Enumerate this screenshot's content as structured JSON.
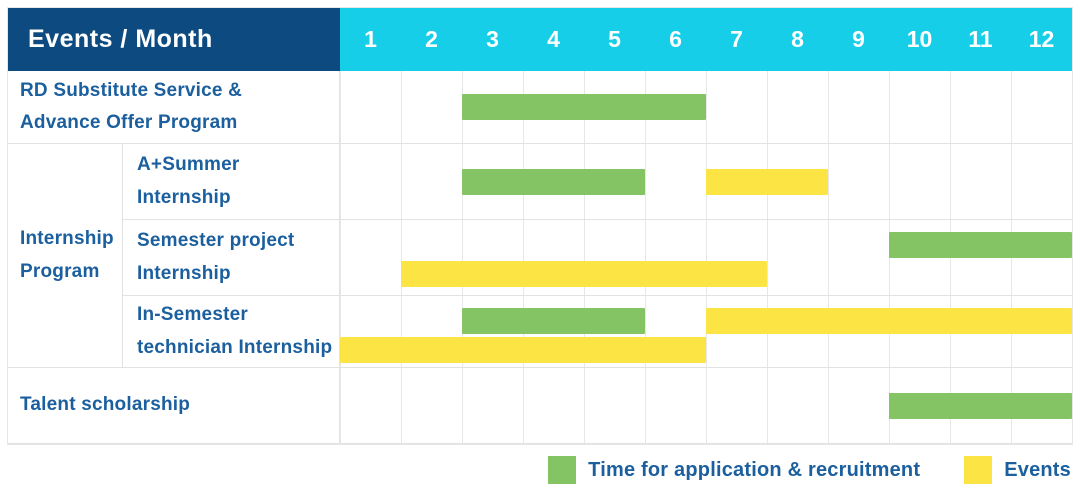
{
  "header": {
    "title": "Events / Month"
  },
  "months": [
    "1",
    "2",
    "3",
    "4",
    "5",
    "6",
    "7",
    "8",
    "9",
    "10",
    "11",
    "12"
  ],
  "colors": {
    "header_bg": "#0d4a7f",
    "months_bg": "#17cee9",
    "application": "#84c464",
    "events": "#fde445",
    "label_text": "#1b5f9e",
    "grid_line": "#e7e7e7"
  },
  "rows": [
    {
      "label": "RD Substitute Service &\nAdvance Offer Program",
      "lanes": 1,
      "bars": [
        {
          "type": "application",
          "start": 3,
          "end": 6,
          "lane": 0
        }
      ]
    },
    {
      "group": "Internship\nProgram",
      "label": "A+Summer\nInternship",
      "lanes": 1,
      "bars": [
        {
          "type": "application",
          "start": 3,
          "end": 5,
          "lane": 0
        },
        {
          "type": "events",
          "start": 7,
          "end": 8,
          "lane": 0
        }
      ]
    },
    {
      "label": "Semester project\nInternship",
      "lanes": 2,
      "bars": [
        {
          "type": "application",
          "start": 10,
          "end": 12,
          "lane": 0
        },
        {
          "type": "events",
          "start": 2,
          "end": 7,
          "lane": 1
        }
      ]
    },
    {
      "label": "In-Semester\ntechnician Internship",
      "lanes": 2,
      "bars": [
        {
          "type": "application",
          "start": 3,
          "end": 5,
          "lane": 0
        },
        {
          "type": "events",
          "start": 7,
          "end": 12,
          "lane": 0
        },
        {
          "type": "events",
          "start": 1,
          "end": 6,
          "lane": 1
        }
      ]
    },
    {
      "label": "Talent scholarship",
      "lanes": 1,
      "bars": [
        {
          "type": "application",
          "start": 10,
          "end": 12,
          "lane": 0
        }
      ]
    }
  ],
  "legend": [
    {
      "type": "application",
      "label": "Time for application & recruitment"
    },
    {
      "type": "events",
      "label": "Events"
    }
  ],
  "chart_data": {
    "type": "bar",
    "variant": "gantt",
    "title": "Events / Month",
    "xlabel": "Month",
    "x_ticks": [
      1,
      2,
      3,
      4,
      5,
      6,
      7,
      8,
      9,
      10,
      11,
      12
    ],
    "xlim": [
      1,
      12
    ],
    "grid": true,
    "legend_position": "bottom-right",
    "series_meaning": {
      "application": "Time for application & recruitment",
      "events": "Events"
    },
    "rows": [
      {
        "event": "RD Substitute Service & Advance Offer Program",
        "application_recruitment_months": [
          [
            3,
            6
          ]
        ],
        "events_months": []
      },
      {
        "group": "Internship Program",
        "event": "A+Summer Internship",
        "application_recruitment_months": [
          [
            3,
            5
          ]
        ],
        "events_months": [
          [
            7,
            8
          ]
        ]
      },
      {
        "group": "Internship Program",
        "event": "Semester project Internship",
        "application_recruitment_months": [
          [
            10,
            12
          ]
        ],
        "events_months": [
          [
            2,
            7
          ]
        ]
      },
      {
        "group": "Internship Program",
        "event": "In-Semester technician Internship",
        "application_recruitment_months": [
          [
            3,
            5
          ]
        ],
        "events_months": [
          [
            7,
            12
          ],
          [
            1,
            6
          ]
        ]
      },
      {
        "event": "Talent scholarship",
        "application_recruitment_months": [
          [
            10,
            12
          ]
        ],
        "events_months": []
      }
    ]
  }
}
